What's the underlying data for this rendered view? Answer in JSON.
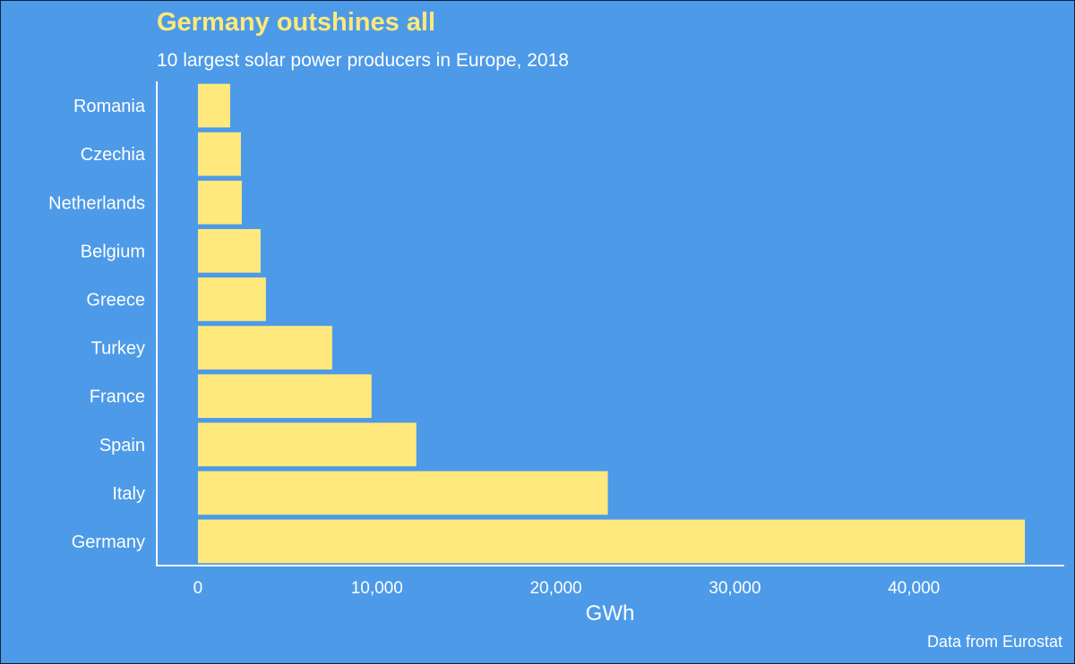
{
  "chart_data": {
    "type": "bar",
    "orientation": "horizontal",
    "title": "Germany outshines all",
    "subtitle": "10 largest solar power producers in Europe, 2018",
    "xlabel": "GWh",
    "ylabel": "",
    "caption": "Data from Eurostat",
    "categories": [
      "Germany",
      "Italy",
      "Spain",
      "France",
      "Turkey",
      "Greece",
      "Belgium",
      "Netherlands",
      "Czechia",
      "Romania"
    ],
    "values": [
      46200,
      22900,
      12200,
      9700,
      7500,
      3800,
      3500,
      2450,
      2400,
      1800
    ],
    "xlim": [
      -2300,
      48400
    ],
    "xticks": [
      0,
      10000,
      20000,
      30000,
      40000
    ],
    "xtick_labels": [
      "0",
      "10,000",
      "20,000",
      "30,000",
      "40,000"
    ],
    "grid": false,
    "colors": {
      "background": "#4d9ae8",
      "bar": "#ffe97d",
      "title": "#fde97b",
      "text": "#ffffff",
      "axis": "#ffffff"
    }
  }
}
